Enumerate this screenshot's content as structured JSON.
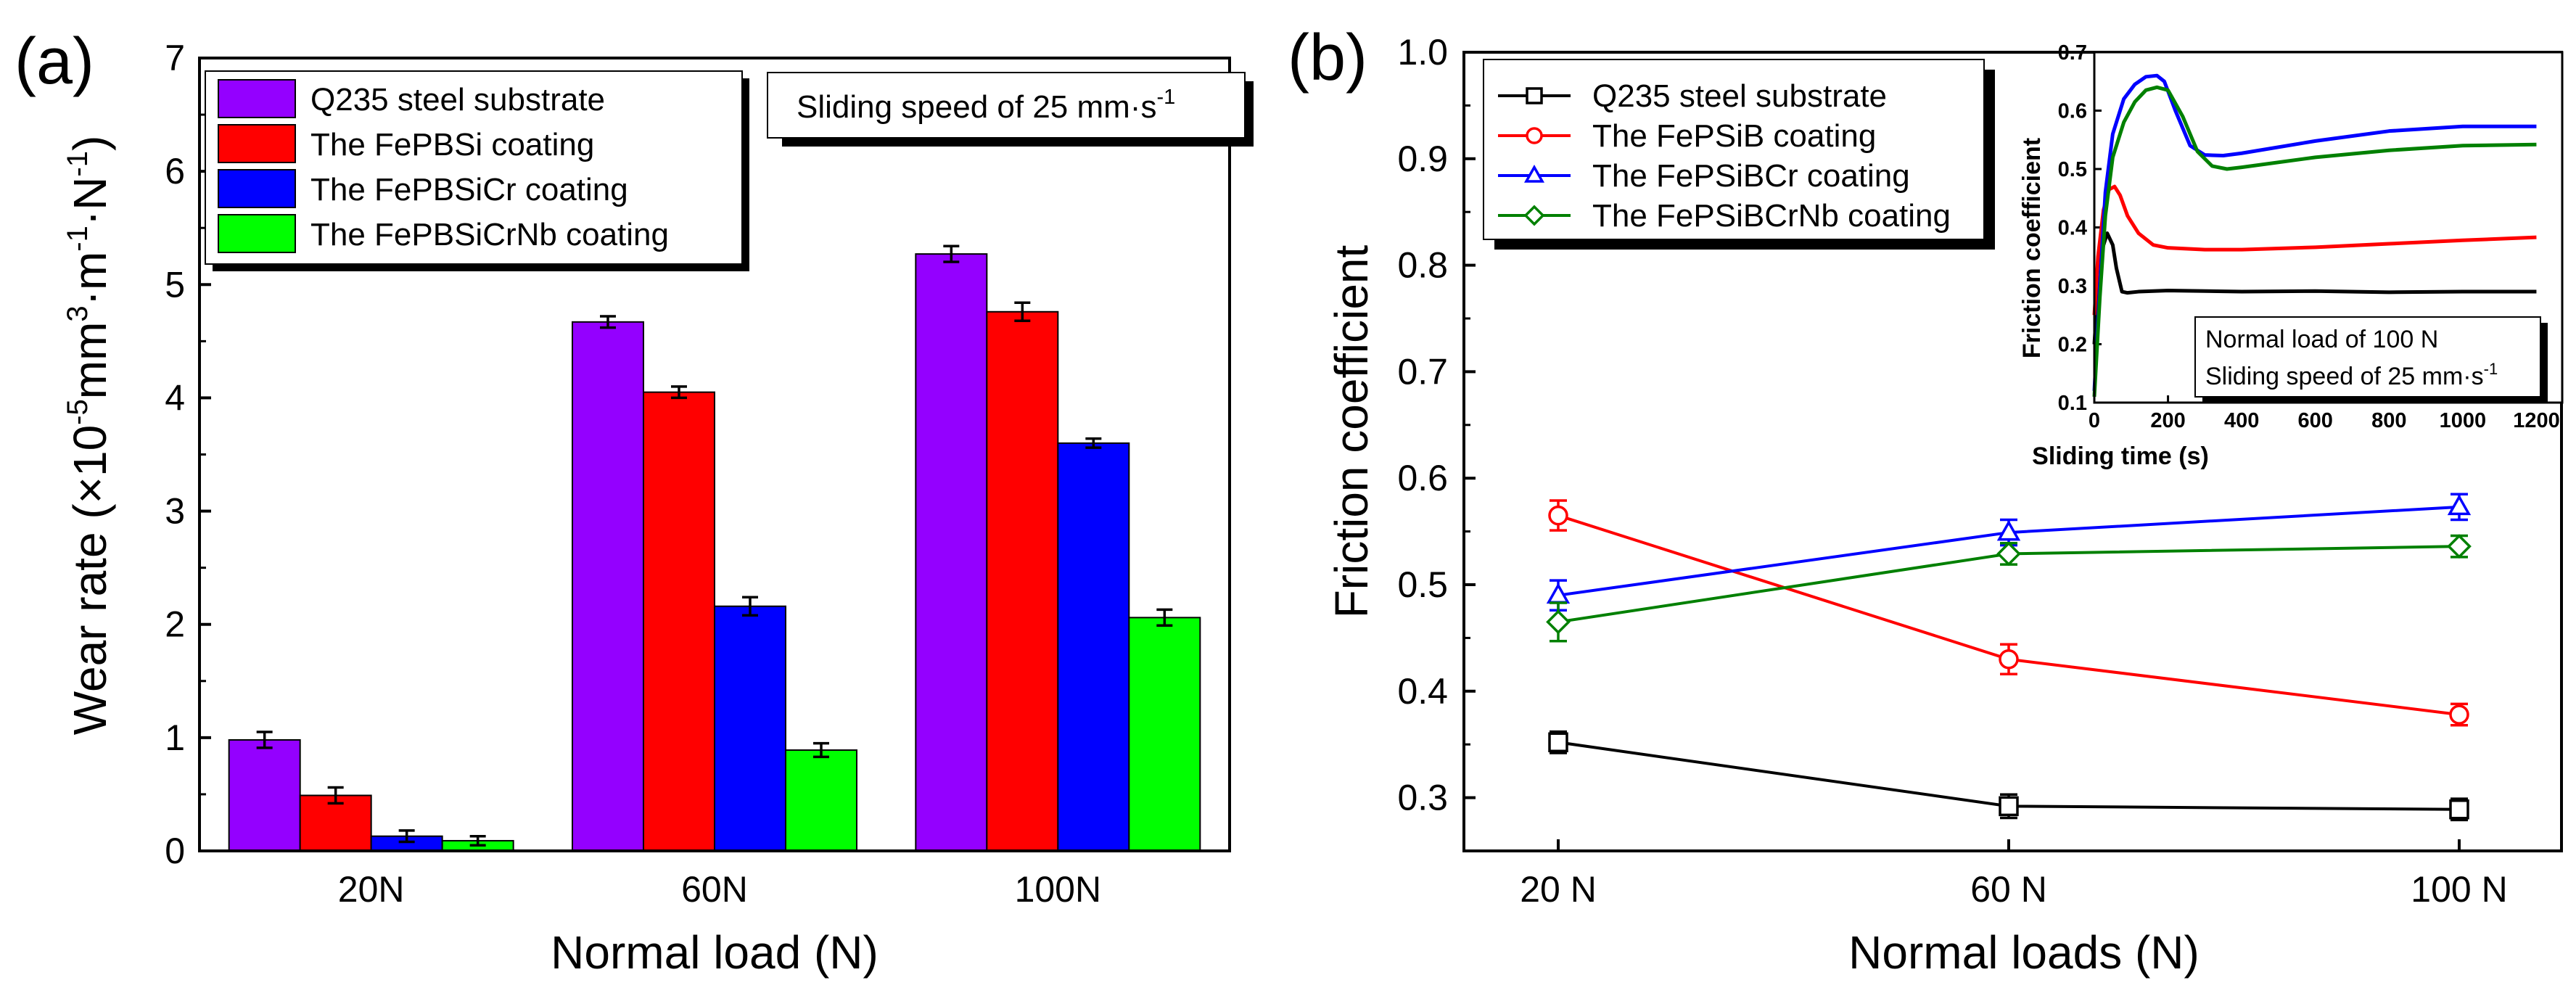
{
  "chart_data": [
    {
      "panel": "(a)",
      "type": "bar",
      "categories": [
        "20N",
        "60N",
        "100N"
      ],
      "xlabel": "Normal load (N)",
      "ylabel": "Wear rate (×10⁻⁵mm³·m⁻¹·N⁻¹)",
      "ylabel_parts": {
        "pre": "Wear rate (×10",
        "sup1": "-5",
        "mid1": "mm",
        "sup2": "3",
        "mid2": "·m",
        "sup3": "-1",
        "mid3": "·N",
        "sup4": "-1",
        "post": ")"
      },
      "ylim": [
        0,
        7
      ],
      "yticks": [
        0,
        1,
        2,
        3,
        4,
        5,
        6,
        7
      ],
      "series": [
        {
          "name": "Q235 steel substrate",
          "color": "#9400ff",
          "values": [
            0.98,
            4.67,
            5.27
          ],
          "errors": [
            0.07,
            0.05,
            0.07
          ]
        },
        {
          "name": "The FePBSi coating",
          "color": "#ff0000",
          "values": [
            0.49,
            4.05,
            4.76
          ],
          "errors": [
            0.07,
            0.05,
            0.08
          ]
        },
        {
          "name": "The FePBSiCr coating",
          "color": "#0000ff",
          "values": [
            0.13,
            2.16,
            3.6
          ],
          "errors": [
            0.05,
            0.08,
            0.04
          ]
        },
        {
          "name": "The FePBSiCrNb coating",
          "color": "#00ff00",
          "values": [
            0.09,
            0.89,
            2.06
          ],
          "errors": [
            0.04,
            0.06,
            0.07
          ]
        }
      ],
      "annotation": {
        "pre": "Sliding speed of 25 mm·s",
        "sup": "-1"
      }
    },
    {
      "panel": "(b)",
      "type": "line",
      "categories": [
        "20 N",
        "60 N",
        "100 N"
      ],
      "xlabel": "Normal loads (N)",
      "ylabel": "Friction coefficient",
      "ylim": [
        0.25,
        1.0
      ],
      "yticks": [
        "0.3",
        "0.4",
        "0.5",
        "0.6",
        "0.7",
        "0.8",
        "0.9",
        "1.0"
      ],
      "series": [
        {
          "name": "Q235 steel substrate",
          "color": "#000000",
          "marker": "square",
          "values": [
            0.352,
            0.292,
            0.289
          ],
          "errors": [
            0.01,
            0.011,
            0.01
          ]
        },
        {
          "name": "The FePSiB coating",
          "color": "#ff0000",
          "marker": "circle",
          "values": [
            0.565,
            0.43,
            0.378
          ],
          "errors": [
            0.014,
            0.014,
            0.01
          ]
        },
        {
          "name": "The FePSiBCr coating",
          "color": "#0000ff",
          "marker": "triangle",
          "values": [
            0.49,
            0.549,
            0.573
          ],
          "errors": [
            0.014,
            0.012,
            0.012
          ]
        },
        {
          "name": "The FePSiBCrNb coating",
          "color": "#008000",
          "marker": "diamond",
          "values": [
            0.465,
            0.529,
            0.536
          ],
          "errors": [
            0.018,
            0.01,
            0.01
          ]
        }
      ]
    },
    {
      "panel": "(b) inset",
      "type": "line",
      "xlabel": "Sliding time (s)",
      "ylabel": "Friction coefficient",
      "xlim": [
        0,
        1270
      ],
      "xticks": [
        "0",
        "200",
        "400",
        "600",
        "800",
        "1000",
        "1200"
      ],
      "ylim": [
        0.1,
        0.7
      ],
      "yticks": [
        "0.1",
        "0.2",
        "0.3",
        "0.4",
        "0.5",
        "0.6",
        "0.7"
      ],
      "series": [
        {
          "name": "Q235 steel substrate",
          "color": "#000000",
          "x": [
            0,
            10,
            20,
            35,
            50,
            60,
            75,
            90,
            120,
            200,
            400,
            600,
            800,
            1000,
            1200
          ],
          "y": [
            0.2,
            0.3,
            0.36,
            0.39,
            0.37,
            0.33,
            0.29,
            0.288,
            0.29,
            0.292,
            0.29,
            0.291,
            0.289,
            0.29,
            0.29
          ]
        },
        {
          "name": "The FePSiB coating",
          "color": "#ff0000",
          "x": [
            0,
            10,
            25,
            40,
            55,
            70,
            90,
            120,
            160,
            200,
            300,
            400,
            600,
            800,
            1000,
            1200
          ],
          "y": [
            0.25,
            0.35,
            0.43,
            0.465,
            0.47,
            0.455,
            0.42,
            0.39,
            0.37,
            0.365,
            0.362,
            0.362,
            0.366,
            0.372,
            0.378,
            0.383
          ]
        },
        {
          "name": "The FePSiBCr coating",
          "color": "#0000ff",
          "x": [
            0,
            15,
            30,
            50,
            80,
            110,
            140,
            170,
            190,
            220,
            260,
            300,
            350,
            400,
            600,
            800,
            1000,
            1200
          ],
          "y": [
            0.12,
            0.3,
            0.46,
            0.56,
            0.62,
            0.645,
            0.658,
            0.66,
            0.65,
            0.6,
            0.54,
            0.524,
            0.523,
            0.527,
            0.548,
            0.565,
            0.573,
            0.573
          ]
        },
        {
          "name": "The FePSiBCrNb coating",
          "color": "#008000",
          "x": [
            0,
            15,
            30,
            50,
            80,
            110,
            140,
            170,
            200,
            240,
            280,
            320,
            360,
            400,
            600,
            800,
            1000,
            1200
          ],
          "y": [
            0.11,
            0.28,
            0.42,
            0.52,
            0.58,
            0.615,
            0.635,
            0.64,
            0.635,
            0.59,
            0.53,
            0.505,
            0.5,
            0.503,
            0.52,
            0.532,
            0.54,
            0.542
          ]
        }
      ],
      "annotation": {
        "line1": "Normal load of 100 N",
        "line2_pre": "Sliding speed of 25 mm·s",
        "line2_sup": "-1"
      }
    }
  ]
}
